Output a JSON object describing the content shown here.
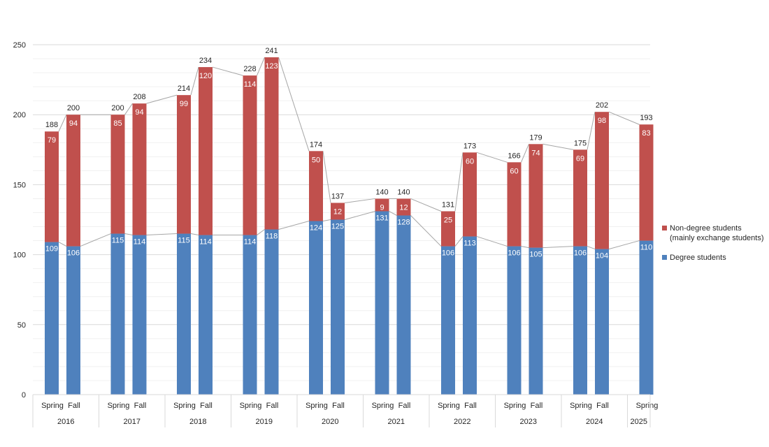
{
  "chart_data": {
    "type": "stacked-bar",
    "title": "",
    "xlabel": "",
    "ylabel": "",
    "ylim": [
      0,
      250
    ],
    "yticks": [
      0,
      50,
      100,
      150,
      200,
      250
    ],
    "grid": true,
    "legend_position": "right",
    "years": [
      "2016",
      "2017",
      "2018",
      "2019",
      "2020",
      "2021",
      "2022",
      "2023",
      "2024",
      "2025"
    ],
    "categories": [
      {
        "year": "2016",
        "term": "Spring"
      },
      {
        "year": "2016",
        "term": "Fall"
      },
      {
        "year": "2017",
        "term": "Spring"
      },
      {
        "year": "2017",
        "term": "Fall"
      },
      {
        "year": "2018",
        "term": "Spring"
      },
      {
        "year": "2018",
        "term": "Fall"
      },
      {
        "year": "2019",
        "term": "Spring"
      },
      {
        "year": "2019",
        "term": "Fall"
      },
      {
        "year": "2020",
        "term": "Spring"
      },
      {
        "year": "2020",
        "term": "Fall"
      },
      {
        "year": "2021",
        "term": "Spring"
      },
      {
        "year": "2021",
        "term": "Fall"
      },
      {
        "year": "2022",
        "term": "Spring"
      },
      {
        "year": "2022",
        "term": "Fall"
      },
      {
        "year": "2023",
        "term": "Spring"
      },
      {
        "year": "2023",
        "term": "Fall"
      },
      {
        "year": "2024",
        "term": "Spring"
      },
      {
        "year": "2024",
        "term": "Fall"
      },
      {
        "year": "2025",
        "term": "Spring"
      }
    ],
    "series": [
      {
        "name": "Degree students",
        "color": "#4f81bd",
        "values": [
          109,
          106,
          115,
          114,
          115,
          114,
          114,
          118,
          124,
          125,
          131,
          128,
          106,
          113,
          106,
          105,
          106,
          104,
          110
        ]
      },
      {
        "name": "Non-degree students\n(mainly exchange students)",
        "color": "#c0504d",
        "values": [
          79,
          94,
          85,
          94,
          99,
          120,
          114,
          123,
          50,
          12,
          9,
          12,
          25,
          60,
          60,
          74,
          69,
          98,
          83
        ]
      }
    ],
    "totals": [
      188,
      200,
      200,
      208,
      214,
      234,
      228,
      241,
      174,
      137,
      140,
      140,
      131,
      173,
      166,
      179,
      175,
      202,
      193
    ],
    "legend": [
      {
        "label": "Non-degree students",
        "sublabel": "(mainly exchange students)",
        "color": "#c0504d"
      },
      {
        "label": "Degree students",
        "sublabel": "",
        "color": "#4f81bd"
      }
    ],
    "colors": {
      "degree": "#4f81bd",
      "nondegree": "#c0504d",
      "connector": "#a6a6a6",
      "grid": "#d9d9d9",
      "axis_text": "#262626"
    }
  }
}
